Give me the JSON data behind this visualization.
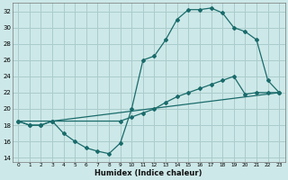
{
  "xlabel": "Humidex (Indice chaleur)",
  "bg_color": "#cde8e8",
  "grid_color": "#aacccc",
  "line_color": "#1a6b6b",
  "xlim": [
    -0.5,
    23.5
  ],
  "ylim": [
    13.5,
    33
  ],
  "xticks": [
    0,
    1,
    2,
    3,
    4,
    5,
    6,
    7,
    8,
    9,
    10,
    11,
    12,
    13,
    14,
    15,
    16,
    17,
    18,
    19,
    20,
    21,
    22,
    23
  ],
  "yticks": [
    14,
    16,
    18,
    20,
    22,
    24,
    26,
    28,
    30,
    32
  ],
  "curve1_x": [
    0,
    1,
    2,
    3,
    4,
    5,
    6,
    7,
    8,
    9,
    10,
    11,
    12,
    13,
    14,
    15,
    16,
    17,
    18,
    19,
    20,
    21,
    22,
    23
  ],
  "curve1_y": [
    18.5,
    18.0,
    18.0,
    18.5,
    17.0,
    16.0,
    15.2,
    14.8,
    14.5,
    15.8,
    20.0,
    26.0,
    26.5,
    28.5,
    31.0,
    32.2,
    32.2,
    32.4,
    31.8,
    30.0,
    29.5,
    28.5,
    23.5,
    22.0
  ],
  "curve2_x": [
    0,
    1,
    2,
    3,
    9,
    10,
    11,
    12,
    13,
    14,
    15,
    16,
    17,
    18,
    19,
    20,
    21,
    22,
    23
  ],
  "curve2_y": [
    18.5,
    18.0,
    18.0,
    18.5,
    18.5,
    19.0,
    19.5,
    20.0,
    20.8,
    21.5,
    22.0,
    22.5,
    23.0,
    23.5,
    24.0,
    21.8,
    22.0,
    22.0,
    22.0
  ],
  "curve3_x": [
    0,
    3,
    23
  ],
  "curve3_y": [
    18.5,
    18.5,
    22.0
  ]
}
